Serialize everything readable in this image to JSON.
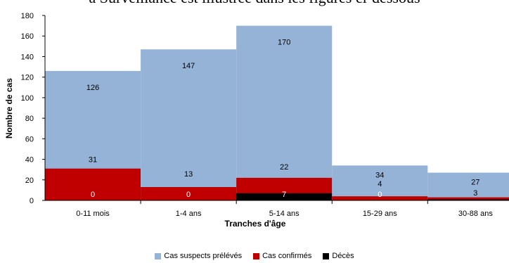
{
  "top_text": "a Surveillance est illustrée dans les figures ci-dessous",
  "colors": {
    "suspects": "#95b3d7",
    "confirmes": "#c00000",
    "deces": "#000000"
  },
  "chart_data": {
    "type": "bar",
    "categories": [
      "0-11  mois",
      "1-4 ans",
      "5-14 ans",
      "15-29  ans",
      "30-88  ans"
    ],
    "series": [
      {
        "name": "Cas  suspects  prélévés",
        "values": [
          126,
          147,
          170,
          34,
          27
        ]
      },
      {
        "name": "Cas  confirmés",
        "values": [
          31,
          13,
          22,
          4,
          3
        ]
      },
      {
        "name": "Décès",
        "values": [
          0,
          0,
          7,
          0,
          1
        ]
      }
    ],
    "data_labels": [
      [
        "126",
        "31",
        "0"
      ],
      [
        "147",
        "13",
        "0"
      ],
      [
        "170",
        "22",
        "7"
      ],
      [
        "34",
        "4",
        "0"
      ],
      [
        "27",
        "3",
        ""
      ]
    ],
    "xlabel": "Tranches  d'âge",
    "ylabel": "Nombre  de  cas",
    "ylim": [
      0,
      180
    ],
    "yticks": [
      0,
      20,
      40,
      60,
      80,
      100,
      120,
      140,
      160,
      180
    ],
    "legend_position": "bottom",
    "grid": false
  }
}
